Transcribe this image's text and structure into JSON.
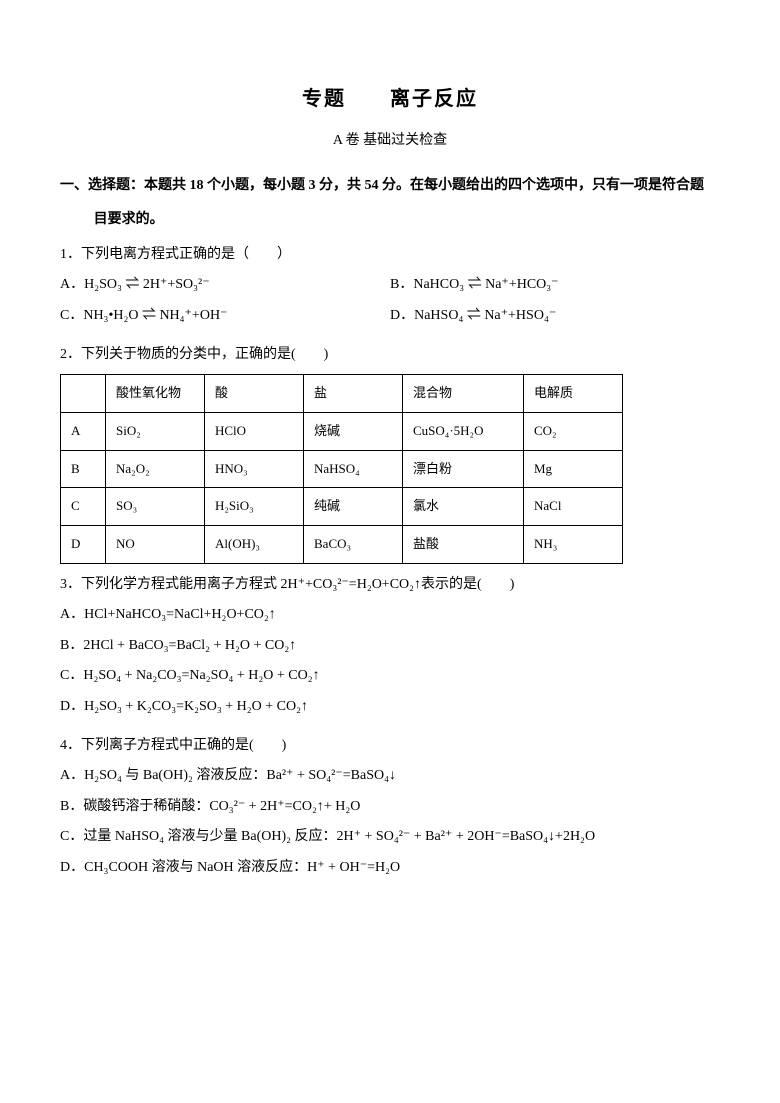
{
  "title": "专题　　离子反应",
  "subtitle": "A 卷  基础过关检查",
  "section1": "一、选择题：本题共 18 个小题，每小题 3 分，共 54 分。在每小题给出的四个选项中，只有一项是符合题",
  "section1b": "目要求的。",
  "q1": {
    "stem": "1．下列电离方程式正确的是（　　）",
    "A": "A．H₂SO₃ ⇌ 2H⁺+SO₃²⁻",
    "B": "B．NaHCO₃ ⇌ Na⁺+HCO₃⁻",
    "C": "C．NH₃•H₂O ⇌ NH₄⁺+OH⁻",
    "D": "D．NaHSO₄ ⇌ Na⁺+HSO₄⁻"
  },
  "q2": {
    "stem": "2．下列关于物质的分类中，正确的是(　　)",
    "headers": [
      "",
      "酸性氧化物",
      "酸",
      "盐",
      "混合物",
      "电解质"
    ],
    "rows": [
      [
        "A",
        "SiO₂",
        "HClO",
        "烧碱",
        "CuSO₄·5H₂O",
        "CO₂"
      ],
      [
        "B",
        "Na₂O₂",
        "HNO₃",
        "NaHSO₄",
        "漂白粉",
        "Mg"
      ],
      [
        "C",
        "SO₃",
        "H₂SiO₃",
        "纯碱",
        "氯水",
        "NaCl"
      ],
      [
        "D",
        "NO",
        "Al(OH)₃",
        "BaCO₃",
        "盐酸",
        "NH₃"
      ]
    ]
  },
  "q3": {
    "stem": "3．下列化学方程式能用离子方程式 2H⁺+CO₃²⁻=H₂O+CO₂↑表示的是(　　)",
    "A": "A．HCl+NaHCO₃=NaCl+H₂O+CO₂↑",
    "B": "B．2HCl + BaCO₃=BaCl₂ + H₂O + CO₂↑",
    "C": "C．H₂SO₄ + Na₂CO₃=Na₂SO₄ + H₂O + CO₂↑",
    "D": "D．H₂SO₃ + K₂CO₃=K₂SO₃ + H₂O + CO₂↑"
  },
  "q4": {
    "stem": "4．下列离子方程式中正确的是(　　)",
    "A": "A．H₂SO₄ 与 Ba(OH)₂ 溶液反应：Ba²⁺ + SO₄²⁻=BaSO₄↓",
    "B": "B．碳酸钙溶于稀硝酸：CO₃²⁻ + 2H⁺=CO₂↑+ H₂O",
    "C": "C．过量 NaHSO₄ 溶液与少量 Ba(OH)₂ 反应：2H⁺ + SO₄²⁻ + Ba²⁺ + 2OH⁻=BaSO₄↓+2H₂O",
    "D": "D．CH₃COOH 溶液与 NaOH 溶液反应：H⁺ + OH⁻=H₂O"
  }
}
